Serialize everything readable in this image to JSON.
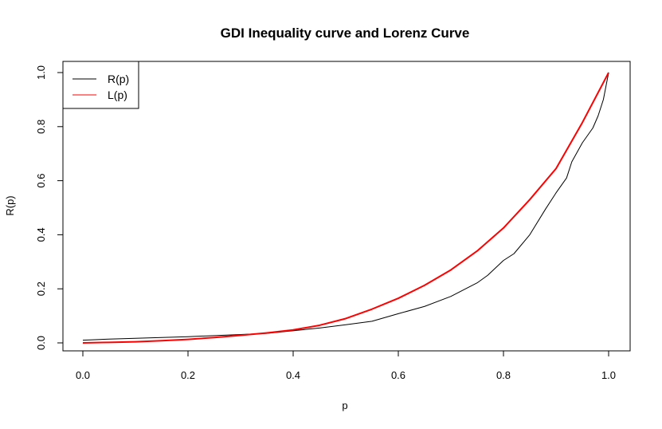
{
  "chart_data": {
    "type": "line",
    "title": "GDI Inequality curve and Lorenz Curve",
    "xlabel": "p",
    "ylabel": "R(p)",
    "xlim": [
      0.0,
      1.0
    ],
    "ylim": [
      0.0,
      1.0
    ],
    "x_ticks": [
      0.0,
      0.2,
      0.4,
      0.6,
      0.8,
      1.0
    ],
    "y_ticks": [
      0.0,
      0.2,
      0.4,
      0.6,
      0.8,
      1.0
    ],
    "x_tick_labels": [
      "0.0",
      "0.2",
      "0.4",
      "0.6",
      "0.8",
      "1.0"
    ],
    "y_tick_labels": [
      "0.0",
      "0.2",
      "0.4",
      "0.6",
      "0.8",
      "1.0"
    ],
    "grid": false,
    "legend_position": "top-left",
    "series": [
      {
        "name": "R(p)",
        "color": "#000000",
        "x": [
          0.0,
          0.05,
          0.1,
          0.15,
          0.2,
          0.25,
          0.3,
          0.35,
          0.4,
          0.45,
          0.5,
          0.55,
          0.6,
          0.65,
          0.7,
          0.75,
          0.77,
          0.8,
          0.82,
          0.85,
          0.88,
          0.9,
          0.92,
          0.93,
          0.95,
          0.97,
          0.98,
          0.99,
          1.0
        ],
        "y": [
          0.01,
          0.014,
          0.017,
          0.02,
          0.023,
          0.027,
          0.031,
          0.035,
          0.045,
          0.055,
          0.067,
          0.08,
          0.108,
          0.135,
          0.172,
          0.222,
          0.25,
          0.305,
          0.33,
          0.4,
          0.495,
          0.555,
          0.61,
          0.67,
          0.74,
          0.795,
          0.84,
          0.9,
          1.0
        ]
      },
      {
        "name": "L(p)",
        "color": "#ff0000",
        "x": [
          0.0,
          0.05,
          0.1,
          0.15,
          0.2,
          0.25,
          0.3,
          0.35,
          0.4,
          0.45,
          0.5,
          0.55,
          0.6,
          0.65,
          0.7,
          0.75,
          0.8,
          0.85,
          0.9,
          0.95,
          1.0
        ],
        "y": [
          0.0,
          0.002,
          0.004,
          0.008,
          0.013,
          0.02,
          0.028,
          0.037,
          0.048,
          0.065,
          0.09,
          0.125,
          0.165,
          0.213,
          0.27,
          0.34,
          0.425,
          0.53,
          0.645,
          0.815,
          1.0
        ]
      }
    ]
  }
}
